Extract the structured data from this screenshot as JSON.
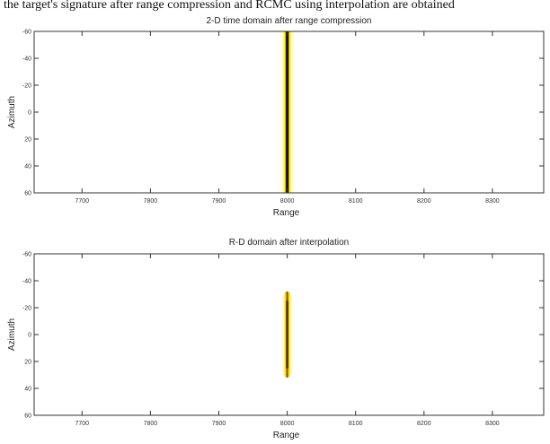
{
  "caption": "the target's signature after range compression and RCMC using interpolation are obtained",
  "chart_data": [
    {
      "type": "heatmap",
      "title": "2-D time domain after range compression",
      "xlabel": "Range",
      "ylabel": "Azimuth",
      "xlim": [
        7630,
        8375
      ],
      "ylim": [
        -60,
        60
      ],
      "y_reversed": true,
      "x_ticks": [
        7700,
        7800,
        7900,
        8000,
        8100,
        8200,
        8300
      ],
      "y_ticks": [
        -60,
        -40,
        -20,
        0,
        20,
        40,
        60
      ],
      "target": {
        "range_center": 8000,
        "azimuth_from": -60,
        "azimuth_to": 60,
        "range_halfwidth_core": 4,
        "range_halfwidth_glow": 12
      },
      "colors": {
        "core": "#111100",
        "mid": "#8a6f00",
        "glow": "#ffe800",
        "halo": "#fffbc4"
      }
    },
    {
      "type": "heatmap",
      "title": "R-D domain after interpolation",
      "xlabel": "Range",
      "ylabel": "Azimuth",
      "xlim": [
        7630,
        8375
      ],
      "ylim": [
        -60,
        60
      ],
      "y_reversed": true,
      "x_ticks": [
        7700,
        7800,
        7900,
        8000,
        8100,
        8200,
        8300
      ],
      "y_ticks": [
        -60,
        -40,
        -20,
        0,
        20,
        40,
        60
      ],
      "target": {
        "range_center": 8000,
        "azimuth_from": -28,
        "azimuth_to": 28,
        "range_halfwidth_core": 3,
        "range_halfwidth_glow": 9
      },
      "colors": {
        "core": "#4a2a00",
        "mid": "#b88a00",
        "glow": "#ffd800",
        "halo": "#fff6b0"
      }
    }
  ]
}
